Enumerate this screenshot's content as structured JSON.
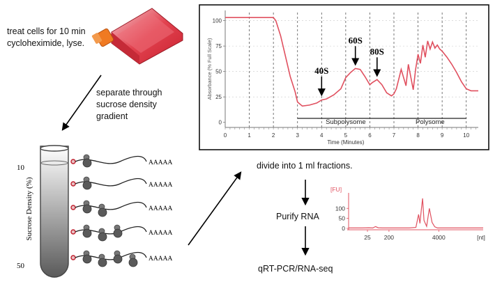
{
  "steps": {
    "treat_line1": "treat cells for 10 min",
    "treat_line2": "cycloheximide, lyse.",
    "separate_line1": "separate through",
    "separate_line2": "sucrose density",
    "separate_line3": "gradient",
    "divide": "divide into 1 ml fractions.",
    "purify": "Purify RNA",
    "seq": "qRT-PCR/RNA-seq"
  },
  "tube": {
    "ylabel": "Sucrose Density (%)",
    "top_value": "10",
    "bottom_value": "50",
    "polya_labels": [
      "AAAAA",
      "AAAAA",
      "AAAAA",
      "AAAAA",
      "AAAAA"
    ],
    "ribosomes_per_mrna": [
      1,
      1,
      2,
      3,
      4
    ],
    "tube_gradient": [
      "#ffffff",
      "#5a5a5a"
    ]
  },
  "profile": {
    "ylabel": "Absorbance (% Full Scale)",
    "xlabel": "Time (Minutes)",
    "x_ticks": [
      "0",
      "1",
      "2",
      "3",
      "4",
      "5",
      "6",
      "7",
      "8",
      "9",
      "10"
    ],
    "y_ticks": [
      "0",
      "25",
      "50",
      "75",
      "100"
    ],
    "peaks": [
      "40S",
      "60S",
      "80S"
    ],
    "subpolysome_label": "Subpolysome",
    "polysome_label": "Polysome",
    "trace_color": "#e0505f",
    "chart_data": {
      "type": "line",
      "xlim": [
        0,
        10.5
      ],
      "ylim": [
        -5,
        110
      ],
      "x": [
        0,
        0.5,
        1,
        1.5,
        2,
        2.1,
        2.3,
        2.5,
        2.7,
        2.9,
        3.0,
        3.2,
        3.5,
        3.8,
        4.0,
        4.2,
        4.5,
        4.8,
        5.0,
        5.2,
        5.4,
        5.6,
        5.8,
        6.0,
        6.1,
        6.3,
        6.5,
        6.7,
        6.9,
        7.0,
        7.1,
        7.3,
        7.5,
        7.6,
        7.8,
        7.9,
        8.0,
        8.1,
        8.2,
        8.3,
        8.4,
        8.5,
        8.6,
        8.7,
        8.8,
        8.9,
        9.0,
        9.2,
        9.4,
        9.6,
        9.8,
        10.0,
        10.2,
        10.5
      ],
      "y": [
        103,
        103,
        103,
        103,
        103,
        100,
        85,
        65,
        45,
        30,
        20,
        16,
        17,
        19,
        22,
        23,
        27,
        33,
        44,
        49,
        53,
        52,
        45,
        37,
        39,
        42,
        37,
        29,
        26,
        28,
        33,
        52,
        36,
        57,
        32,
        52,
        67,
        58,
        76,
        64,
        80,
        72,
        79,
        73,
        76,
        72,
        70,
        64,
        57,
        49,
        40,
        33,
        31,
        31
      ]
    }
  },
  "bioanalyzer": {
    "unit_y": "[FU]",
    "unit_x": "[nt]",
    "y_ticks": [
      "100",
      "50",
      "0"
    ],
    "x_ticks": [
      "25",
      "200",
      "4000"
    ],
    "trace_color": "#e0505f",
    "chart_data": {
      "type": "line",
      "x": [
        0,
        5,
        10,
        15,
        18,
        20,
        22,
        25,
        30,
        35,
        40,
        45,
        50,
        52,
        53,
        54,
        55,
        56,
        58,
        60,
        62,
        64,
        66,
        68,
        70,
        80,
        90,
        100
      ],
      "y": [
        2,
        2,
        2,
        3,
        2,
        9,
        3,
        2,
        2,
        2,
        2,
        2,
        5,
        70,
        25,
        90,
        150,
        40,
        10,
        100,
        30,
        8,
        2,
        2,
        2,
        2,
        2,
        2
      ]
    }
  }
}
